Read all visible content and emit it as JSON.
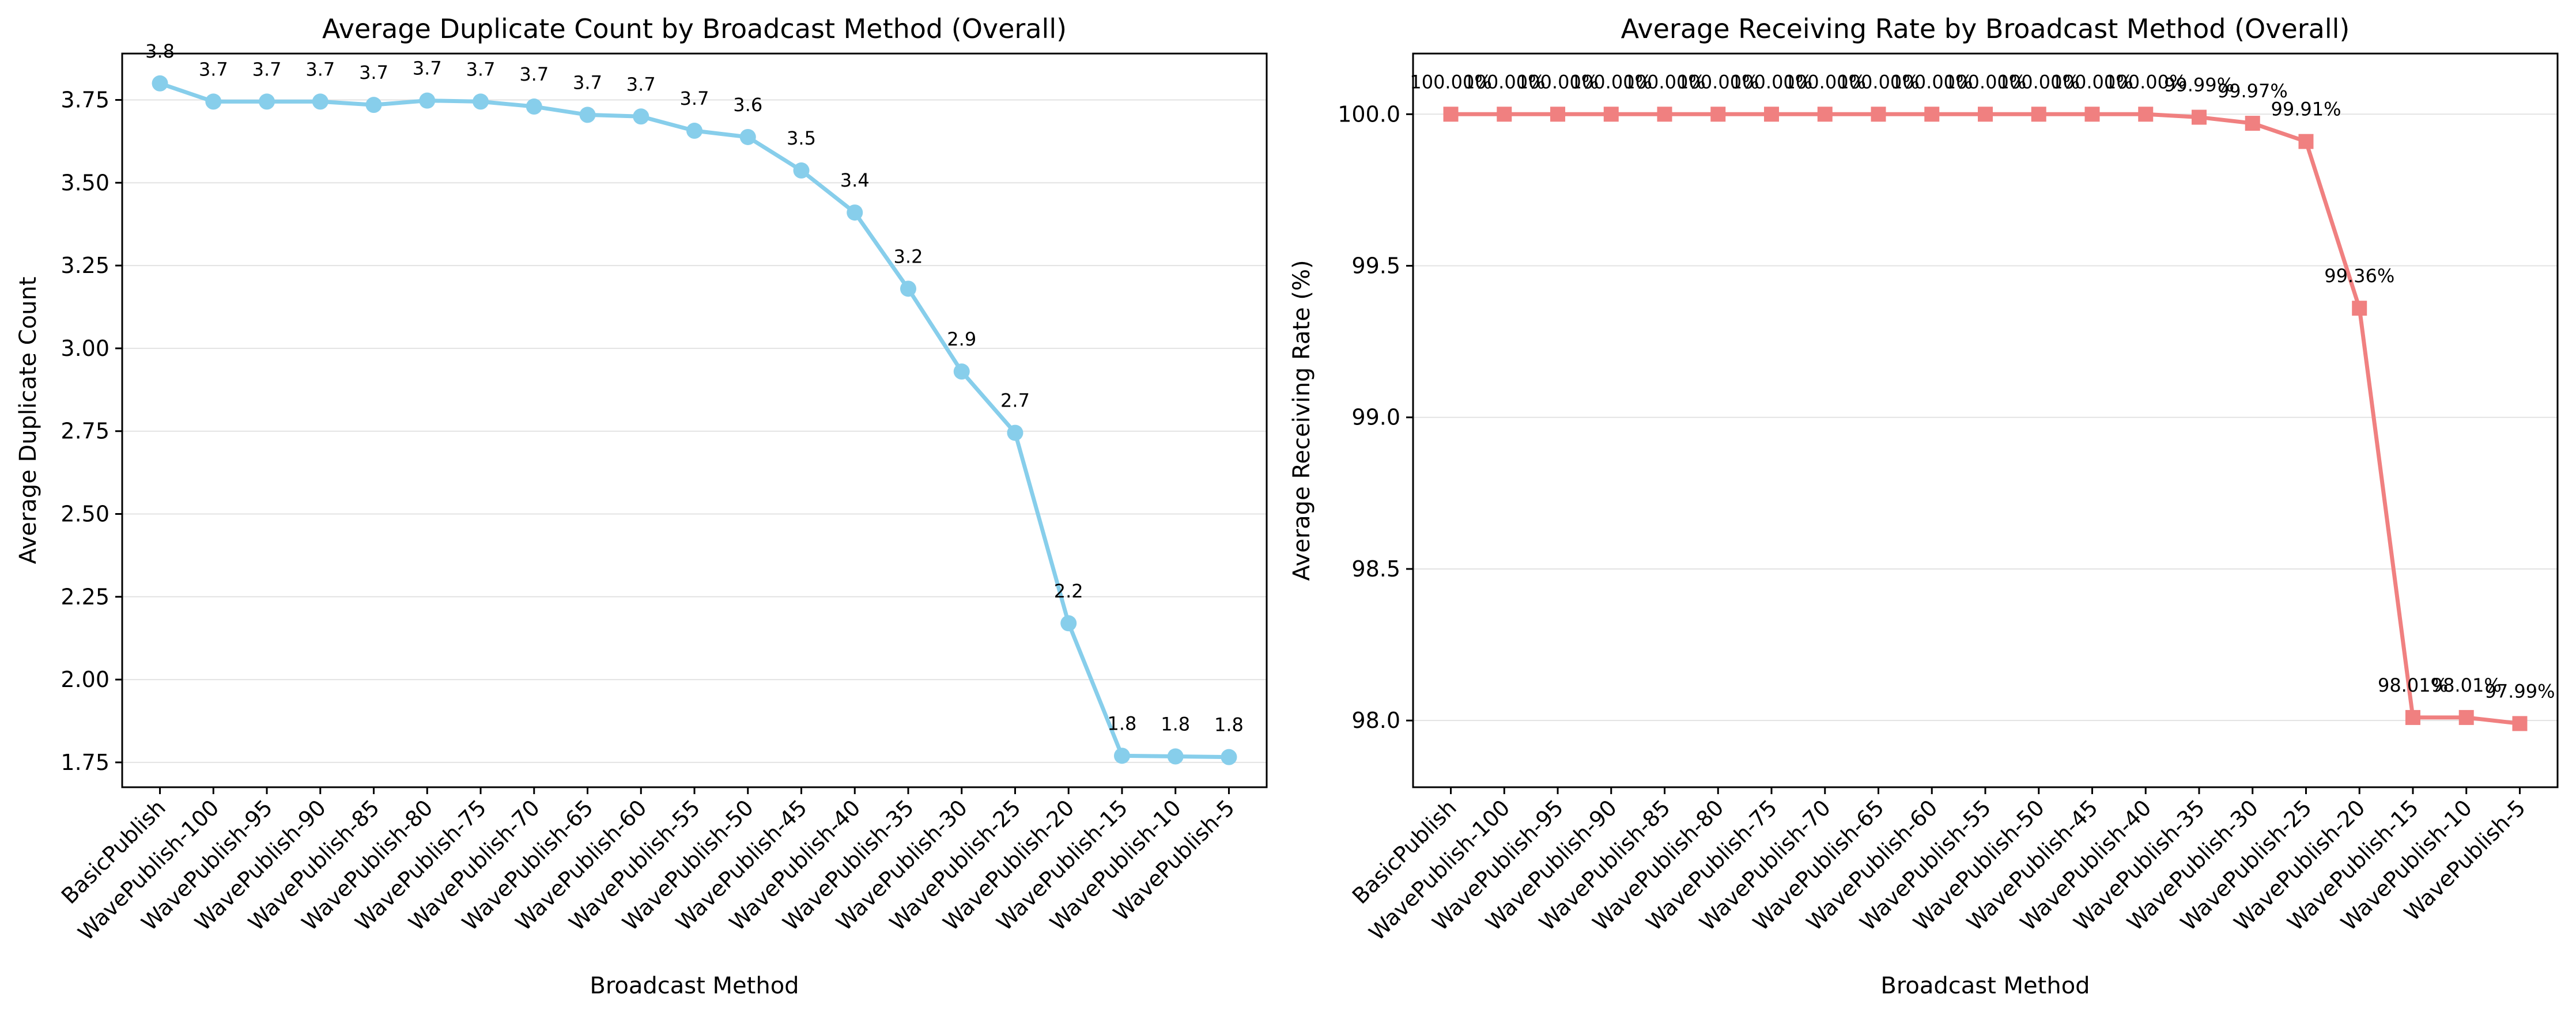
{
  "chart_data": [
    {
      "type": "line",
      "title": "Average Duplicate Count by Broadcast Method (Overall)",
      "xlabel": "Broadcast Method",
      "ylabel": "Average Duplicate Count",
      "categories": [
        "BasicPublish",
        "WavePublish-100",
        "WavePublish-95",
        "WavePublish-90",
        "WavePublish-85",
        "WavePublish-80",
        "WavePublish-75",
        "WavePublish-70",
        "WavePublish-65",
        "WavePublish-60",
        "WavePublish-55",
        "WavePublish-50",
        "WavePublish-45",
        "WavePublish-40",
        "WavePublish-35",
        "WavePublish-30",
        "WavePublish-25",
        "WavePublish-20",
        "WavePublish-15",
        "WavePublish-10",
        "WavePublish-5"
      ],
      "values": [
        3.8,
        3.745,
        3.745,
        3.745,
        3.735,
        3.748,
        3.745,
        3.73,
        3.705,
        3.7,
        3.657,
        3.638,
        3.537,
        3.41,
        3.18,
        2.93,
        2.745,
        2.17,
        1.77,
        1.768,
        1.766
      ],
      "data_labels": [
        "3.8",
        "3.7",
        "3.7",
        "3.7",
        "3.7",
        "3.7",
        "3.7",
        "3.7",
        "3.7",
        "3.7",
        "3.7",
        "3.6",
        "3.5",
        "3.4",
        "3.2",
        "2.9",
        "2.7",
        "2.2",
        "1.8",
        "1.8",
        "1.8"
      ],
      "ylim": [
        1.675,
        3.89
      ],
      "yticks": [
        1.75,
        2.0,
        2.25,
        2.5,
        2.75,
        3.0,
        3.25,
        3.5,
        3.75
      ],
      "ytick_labels": [
        "1.75",
        "2.00",
        "2.25",
        "2.50",
        "2.75",
        "3.00",
        "3.25",
        "3.50",
        "3.75"
      ],
      "color": "#87ceeb",
      "marker": "circle",
      "grid": "y"
    },
    {
      "type": "line",
      "title": "Average Receiving Rate by Broadcast Method (Overall)",
      "xlabel": "Broadcast Method",
      "ylabel": "Average Receiving Rate (%)",
      "categories": [
        "BasicPublish",
        "WavePublish-100",
        "WavePublish-95",
        "WavePublish-90",
        "WavePublish-85",
        "WavePublish-80",
        "WavePublish-75",
        "WavePublish-70",
        "WavePublish-65",
        "WavePublish-60",
        "WavePublish-55",
        "WavePublish-50",
        "WavePublish-45",
        "WavePublish-40",
        "WavePublish-35",
        "WavePublish-30",
        "WavePublish-25",
        "WavePublish-20",
        "WavePublish-15",
        "WavePublish-10",
        "WavePublish-5"
      ],
      "values": [
        100.0,
        100.0,
        100.0,
        100.0,
        100.0,
        100.0,
        100.0,
        100.0,
        100.0,
        100.0,
        100.0,
        100.0,
        100.0,
        100.0,
        99.99,
        99.97,
        99.91,
        99.36,
        98.01,
        98.01,
        97.99
      ],
      "data_labels": [
        "100.00%",
        "100.00%",
        "100.00%",
        "100.00%",
        "100.00%",
        "100.00%",
        "100.00%",
        "100.00%",
        "100.00%",
        "100.00%",
        "100.00%",
        "100.00%",
        "100.00%",
        "100.00%",
        "99.99%",
        "99.97%",
        "99.91%",
        "99.36%",
        "98.01%",
        "98.01%",
        "97.99%"
      ],
      "ylim": [
        97.78,
        100.2
      ],
      "yticks": [
        98.0,
        98.5,
        99.0,
        99.5,
        100.0
      ],
      "ytick_labels": [
        "98.0",
        "98.5",
        "99.0",
        "99.5",
        "100.0"
      ],
      "color": "#f08080",
      "marker": "square",
      "grid": "y"
    }
  ]
}
